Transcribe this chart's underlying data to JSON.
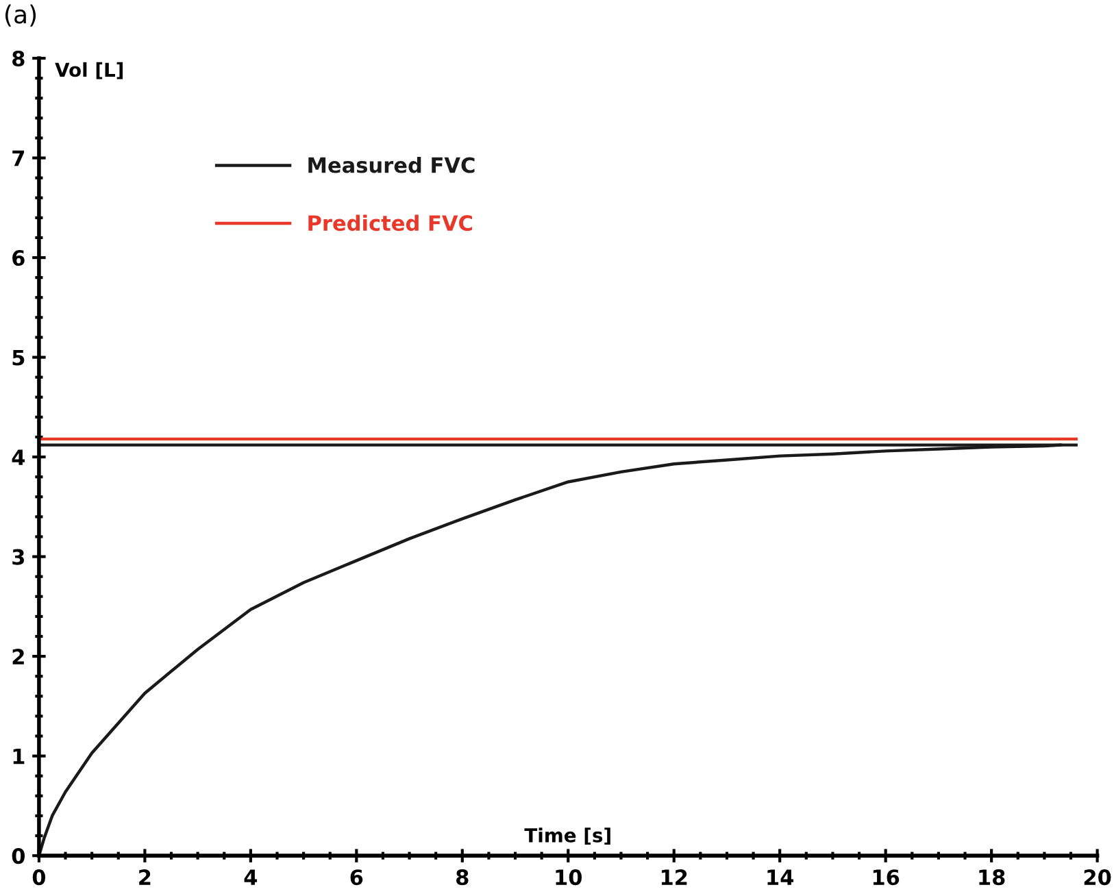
{
  "chart_data": {
    "type": "line",
    "title": "(a)",
    "xlabel": "Time [s]",
    "ylabel": "Vol [L]",
    "xlim": [
      0,
      20
    ],
    "ylim": [
      0,
      8
    ],
    "xticks": [
      0,
      2,
      4,
      6,
      8,
      10,
      12,
      14,
      16,
      18,
      20
    ],
    "yticks": [
      0,
      1,
      2,
      3,
      4,
      5,
      6,
      7,
      8
    ],
    "grid": false,
    "legend": "top left",
    "marker": "none",
    "line_style": "solid",
    "series": [
      {
        "name": "Measured FVC",
        "color": "#1a1a1a",
        "x": [
          0,
          19.6
        ],
        "values": [
          4.12,
          4.12
        ]
      },
      {
        "name": "Predicted FVC",
        "color": "#e8382a",
        "x": [
          0,
          19.6
        ],
        "values": [
          4.18,
          4.18
        ]
      },
      {
        "color": "#1a1a1a",
        "x": [
          0,
          0.1,
          0.25,
          0.5,
          1,
          2,
          3,
          4,
          5,
          6,
          7,
          8,
          9,
          10,
          11,
          12,
          13,
          14,
          15,
          16,
          17,
          18,
          19,
          19.3
        ],
        "values": [
          0,
          0.18,
          0.4,
          0.64,
          1.03,
          1.63,
          2.07,
          2.47,
          2.74,
          2.96,
          3.18,
          3.38,
          3.57,
          3.75,
          3.85,
          3.93,
          3.97,
          4.01,
          4.03,
          4.06,
          4.08,
          4.1,
          4.11,
          4.12
        ]
      }
    ]
  }
}
